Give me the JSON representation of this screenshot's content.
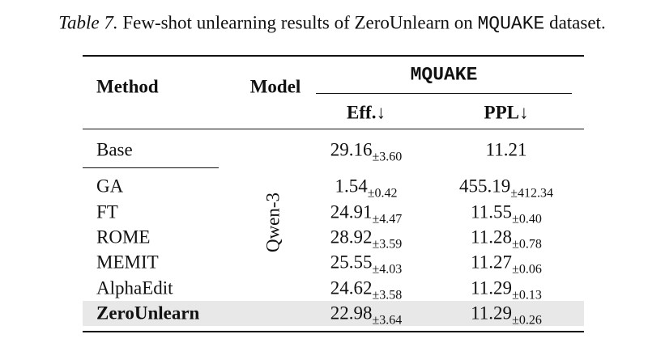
{
  "caption": {
    "label": "Table 7.",
    "text": "Few-shot unlearning results of ZeroUnlearn on",
    "dataset": "MQUAKE",
    "end": "dataset."
  },
  "table": {
    "headers": {
      "method": "Method",
      "model": "Model",
      "group": "MQUAKE",
      "eff": "Eff.↓",
      "ppl": "PPL↓"
    },
    "model": "Qwen-3",
    "rows": [
      {
        "method": "Base",
        "eff": "29.16",
        "eff_std": "±3.60",
        "ppl": "11.21"
      },
      {
        "method": "GA",
        "eff": "1.54",
        "eff_std": "±0.42",
        "ppl": "455.19",
        "ppl_std": "±412.34"
      },
      {
        "method": "FT",
        "eff": "24.91",
        "eff_std": "±4.47",
        "ppl": "11.55",
        "ppl_std": "±0.40"
      },
      {
        "method": "ROME",
        "eff": "28.92",
        "eff_std": "±3.59",
        "ppl": "11.28",
        "ppl_std": "±0.78"
      },
      {
        "method": "MEMIT",
        "eff": "25.55",
        "eff_std": "±4.03",
        "ppl": "11.27",
        "ppl_std": "±0.06"
      },
      {
        "method": "AlphaEdit",
        "eff": "24.62",
        "eff_std": "±3.58",
        "ppl": "11.29",
        "ppl_std": "±0.13"
      },
      {
        "method": "ZeroUnlearn",
        "eff": "22.98",
        "eff_std": "±3.64",
        "ppl": "11.29",
        "ppl_std": "±0.26"
      }
    ]
  }
}
